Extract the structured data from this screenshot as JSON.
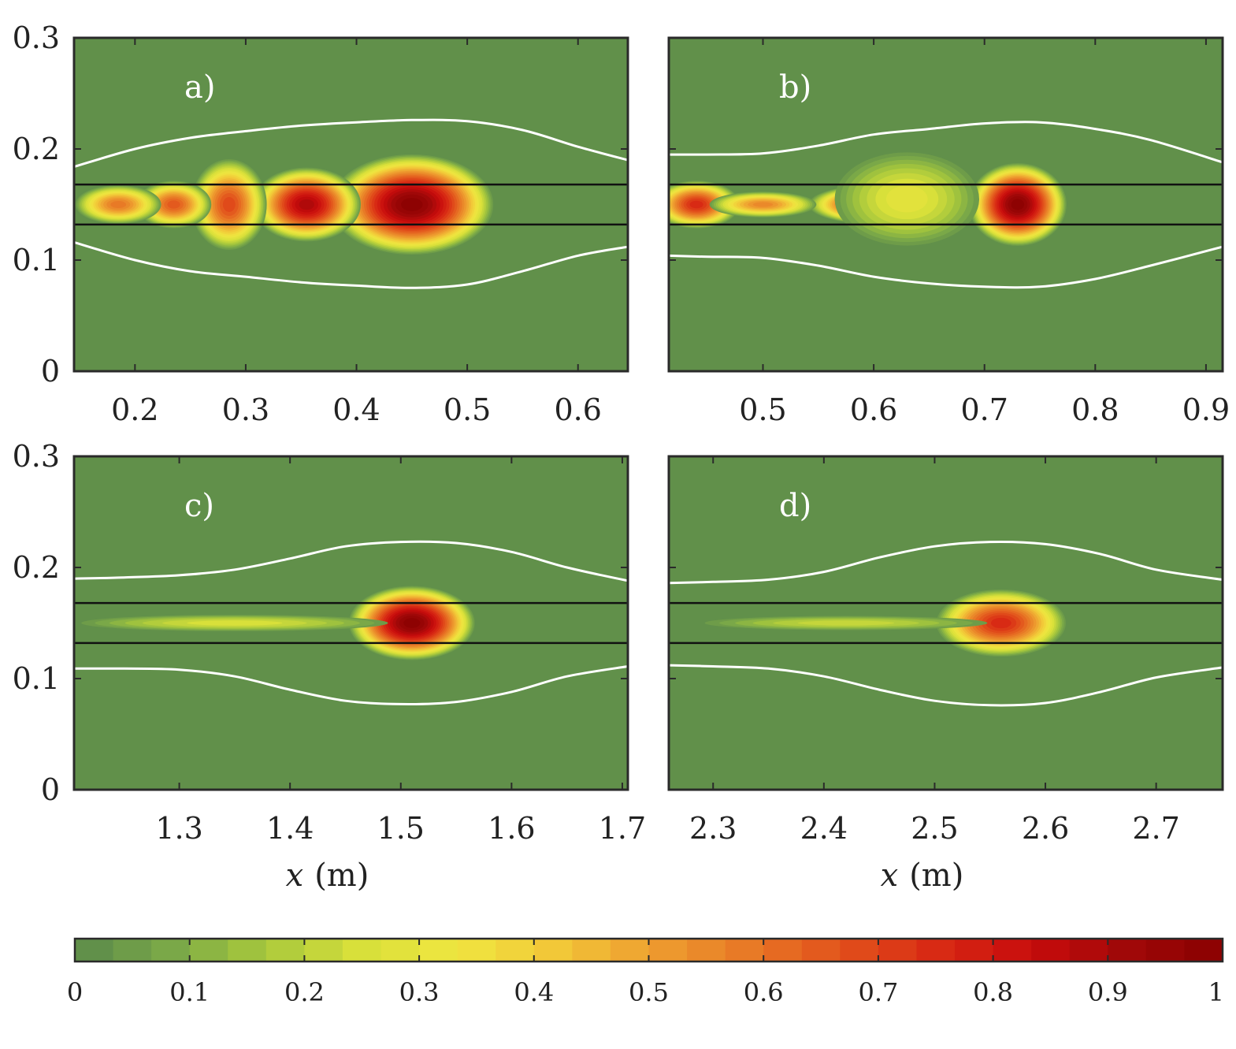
{
  "chart_data": {
    "type": "heatmap",
    "colorbar": {
      "min": 0,
      "max": 1,
      "ticks": [
        0,
        0.1,
        0.2,
        0.3,
        0.4,
        0.5,
        0.6,
        0.7,
        0.8,
        0.9,
        1
      ],
      "tick_labels": [
        "0",
        "0.1",
        "0.2",
        "0.3",
        "0.4",
        "0.5",
        "0.6",
        "0.7",
        "0.8",
        "0.9",
        "1"
      ],
      "levels": 30,
      "colors": [
        "#5b8a4a",
        "#7aa848",
        "#a8c83c",
        "#d8e03a",
        "#f0e640",
        "#f2c838",
        "#eea030",
        "#e87a26",
        "#e2521c",
        "#d82a14",
        "#c80c0c",
        "#a00808",
        "#8a0000"
      ],
      "placement": "bottom"
    },
    "y_ticks": [
      0,
      0.1,
      0.2,
      0.3
    ],
    "y_tick_labels": [
      "0",
      "0.1",
      "0.2",
      "0.3"
    ],
    "ylim": [
      0,
      0.3
    ],
    "black_lines_y": [
      0.132,
      0.168
    ],
    "panels": [
      {
        "label": "a)",
        "xlim": [
          0.145,
          0.645
        ],
        "x_ticks": [
          0.2,
          0.3,
          0.4,
          0.5,
          0.6
        ],
        "x_tick_labels": [
          "0.2",
          "0.3",
          "0.4",
          "0.5",
          "0.6"
        ],
        "xlabel": "",
        "white_contour_upper": [
          [
            0.145,
            0.184
          ],
          [
            0.2,
            0.2
          ],
          [
            0.25,
            0.21
          ],
          [
            0.3,
            0.216
          ],
          [
            0.35,
            0.221
          ],
          [
            0.4,
            0.224
          ],
          [
            0.45,
            0.226
          ],
          [
            0.5,
            0.225
          ],
          [
            0.55,
            0.217
          ],
          [
            0.6,
            0.202
          ],
          [
            0.645,
            0.19
          ]
        ],
        "white_contour_lower": [
          [
            0.145,
            0.116
          ],
          [
            0.2,
            0.1
          ],
          [
            0.25,
            0.09
          ],
          [
            0.3,
            0.085
          ],
          [
            0.35,
            0.08
          ],
          [
            0.4,
            0.077
          ],
          [
            0.45,
            0.075
          ],
          [
            0.5,
            0.078
          ],
          [
            0.55,
            0.09
          ],
          [
            0.6,
            0.104
          ],
          [
            0.645,
            0.112
          ]
        ],
        "blobs": [
          {
            "x": 0.45,
            "y": 0.15,
            "rx": 0.075,
            "ry": 0.046,
            "v": 1.0
          },
          {
            "x": 0.355,
            "y": 0.15,
            "rx": 0.05,
            "ry": 0.034,
            "v": 0.9
          },
          {
            "x": 0.285,
            "y": 0.15,
            "rx": 0.035,
            "ry": 0.042,
            "v": 0.7
          },
          {
            "x": 0.235,
            "y": 0.15,
            "rx": 0.035,
            "ry": 0.022,
            "v": 0.65
          },
          {
            "x": 0.185,
            "y": 0.15,
            "rx": 0.04,
            "ry": 0.018,
            "v": 0.6
          }
        ]
      },
      {
        "label": "b)",
        "xlim": [
          0.415,
          0.915
        ],
        "x_ticks": [
          0.5,
          0.6,
          0.7,
          0.8,
          0.9
        ],
        "x_tick_labels": [
          "0.5",
          "0.6",
          "0.7",
          "0.8",
          "0.9"
        ],
        "xlabel": "",
        "white_contour_upper": [
          [
            0.415,
            0.195
          ],
          [
            0.45,
            0.195
          ],
          [
            0.5,
            0.196
          ],
          [
            0.55,
            0.203
          ],
          [
            0.6,
            0.213
          ],
          [
            0.65,
            0.218
          ],
          [
            0.7,
            0.223
          ],
          [
            0.75,
            0.224
          ],
          [
            0.8,
            0.218
          ],
          [
            0.85,
            0.208
          ],
          [
            0.915,
            0.188
          ]
        ],
        "white_contour_lower": [
          [
            0.415,
            0.104
          ],
          [
            0.45,
            0.103
          ],
          [
            0.5,
            0.102
          ],
          [
            0.55,
            0.095
          ],
          [
            0.6,
            0.085
          ],
          [
            0.65,
            0.079
          ],
          [
            0.7,
            0.076
          ],
          [
            0.75,
            0.076
          ],
          [
            0.8,
            0.083
          ],
          [
            0.85,
            0.095
          ],
          [
            0.915,
            0.112
          ]
        ],
        "blobs": [
          {
            "x": 0.73,
            "y": 0.15,
            "rx": 0.045,
            "ry": 0.038,
            "v": 1.0
          },
          {
            "x": 0.6,
            "y": 0.15,
            "rx": 0.06,
            "ry": 0.018,
            "v": 0.85
          },
          {
            "x": 0.44,
            "y": 0.15,
            "rx": 0.04,
            "ry": 0.022,
            "v": 0.75
          },
          {
            "x": 0.5,
            "y": 0.15,
            "rx": 0.05,
            "ry": 0.012,
            "v": 0.55
          },
          {
            "x": 0.63,
            "y": 0.155,
            "rx": 0.07,
            "ry": 0.045,
            "v": 0.3
          }
        ]
      },
      {
        "label": "c)",
        "xlim": [
          1.205,
          1.705
        ],
        "x_ticks": [
          1.3,
          1.4,
          1.5,
          1.6,
          1.7
        ],
        "x_tick_labels": [
          "1.3",
          "1.4",
          "1.5",
          "1.6",
          "1.7"
        ],
        "xlabel": "x (m)",
        "white_contour_upper": [
          [
            1.205,
            0.19
          ],
          [
            1.25,
            0.191
          ],
          [
            1.3,
            0.193
          ],
          [
            1.35,
            0.198
          ],
          [
            1.4,
            0.208
          ],
          [
            1.45,
            0.219
          ],
          [
            1.5,
            0.223
          ],
          [
            1.55,
            0.222
          ],
          [
            1.6,
            0.214
          ],
          [
            1.65,
            0.2
          ],
          [
            1.705,
            0.188
          ]
        ],
        "white_contour_lower": [
          [
            1.205,
            0.109
          ],
          [
            1.25,
            0.109
          ],
          [
            1.3,
            0.108
          ],
          [
            1.35,
            0.102
          ],
          [
            1.4,
            0.09
          ],
          [
            1.45,
            0.08
          ],
          [
            1.5,
            0.077
          ],
          [
            1.55,
            0.079
          ],
          [
            1.6,
            0.088
          ],
          [
            1.65,
            0.102
          ],
          [
            1.705,
            0.111
          ]
        ],
        "blobs": [
          {
            "x": 1.51,
            "y": 0.15,
            "rx": 0.058,
            "ry": 0.034,
            "v": 1.0
          },
          {
            "x": 1.35,
            "y": 0.15,
            "rx": 0.15,
            "ry": 0.008,
            "v": 0.25
          }
        ]
      },
      {
        "label": "d)",
        "xlim": [
          2.26,
          2.76
        ],
        "x_ticks": [
          2.3,
          2.4,
          2.5,
          2.6,
          2.7
        ],
        "x_tick_labels": [
          "2.3",
          "2.4",
          "2.5",
          "2.6",
          "2.7"
        ],
        "xlabel": "x (m)",
        "white_contour_upper": [
          [
            2.26,
            0.186
          ],
          [
            2.3,
            0.187
          ],
          [
            2.35,
            0.189
          ],
          [
            2.4,
            0.196
          ],
          [
            2.45,
            0.209
          ],
          [
            2.5,
            0.219
          ],
          [
            2.55,
            0.223
          ],
          [
            2.6,
            0.221
          ],
          [
            2.65,
            0.212
          ],
          [
            2.7,
            0.198
          ],
          [
            2.76,
            0.189
          ]
        ],
        "white_contour_lower": [
          [
            2.26,
            0.112
          ],
          [
            2.3,
            0.111
          ],
          [
            2.35,
            0.109
          ],
          [
            2.4,
            0.102
          ],
          [
            2.45,
            0.09
          ],
          [
            2.5,
            0.08
          ],
          [
            2.55,
            0.076
          ],
          [
            2.6,
            0.078
          ],
          [
            2.65,
            0.088
          ],
          [
            2.7,
            0.101
          ],
          [
            2.76,
            0.11
          ]
        ],
        "blobs": [
          {
            "x": 2.56,
            "y": 0.15,
            "rx": 0.06,
            "ry": 0.031,
            "v": 0.78
          },
          {
            "x": 2.42,
            "y": 0.15,
            "rx": 0.14,
            "ry": 0.007,
            "v": 0.22
          }
        ]
      }
    ]
  }
}
